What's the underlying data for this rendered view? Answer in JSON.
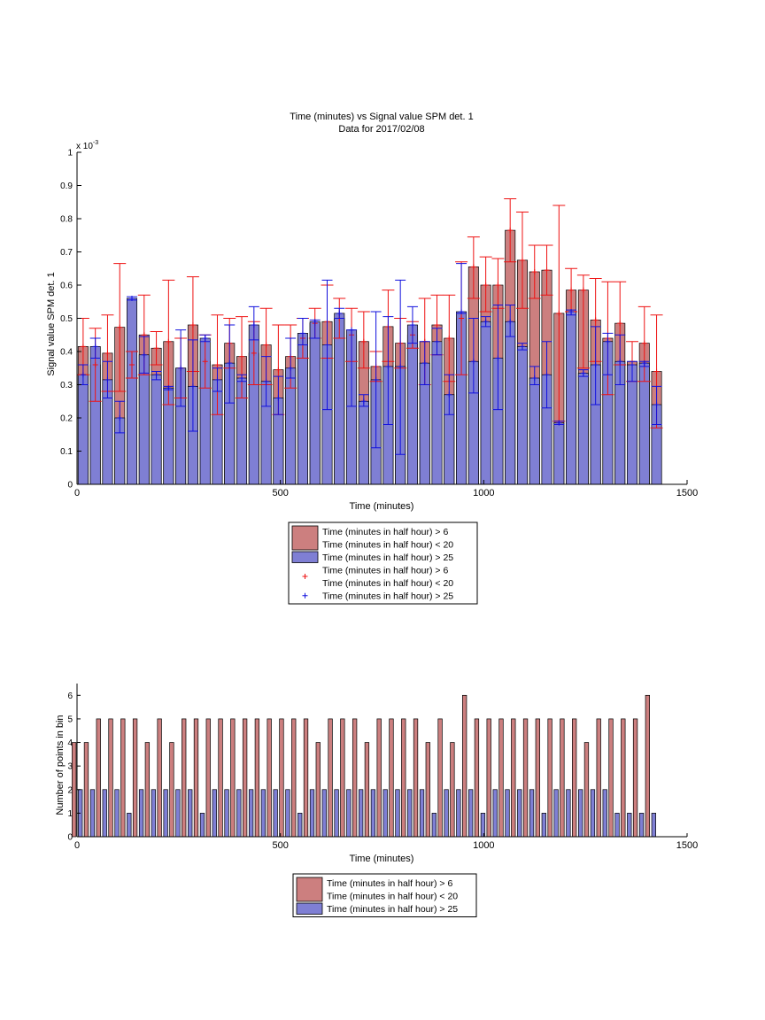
{
  "figure": {
    "title_line1": "Time (minutes) vs Signal value SPM det. 1",
    "title_line2": "Data for 2017/02/08"
  },
  "colors": {
    "red_fill": "#cc7f7f",
    "blue_fill": "#7f7fd4",
    "red_err": "#ee1111",
    "blue_err": "#1111dd",
    "axis": "#000000"
  },
  "legend": {
    "top": {
      "entries": [
        {
          "lines": [
            "Time (minutes in half hour) > 6",
            "Time (minutes in half hour) < 20"
          ],
          "marker": "red-patch"
        },
        {
          "lines": [
            "Time (minutes in half hour) > 25"
          ],
          "marker": "blue-patch"
        },
        {
          "lines": [
            "Time (minutes in half hour) > 6",
            "Time (minutes in half hour) < 20"
          ],
          "marker": "red-plus"
        },
        {
          "lines": [
            "Time (minutes in half hour) > 25"
          ],
          "marker": "blue-plus"
        }
      ]
    },
    "bottom": {
      "entries": [
        {
          "lines": [
            "Time (minutes in half hour) > 6",
            "Time (minutes in half hour) < 20"
          ],
          "marker": "red-patch"
        },
        {
          "lines": [
            "Time (minutes in half hour) > 25"
          ],
          "marker": "blue-patch"
        }
      ]
    }
  },
  "chart_data": [
    {
      "type": "bar",
      "title": "Time (minutes) vs Signal value SPM det. 1",
      "subtitle": "Data for 2017/02/08",
      "xlabel": "Time (minutes)",
      "ylabel": "Signal value SPM det. 1",
      "y_multiplier_label": "x 10",
      "y_multiplier_exponent": "-3",
      "xlim": [
        0,
        1500
      ],
      "ylim": [
        0,
        1
      ],
      "xticks": [
        0,
        500,
        1000,
        1500
      ],
      "yticks": [
        0,
        0.1,
        0.2,
        0.3,
        0.4,
        0.5,
        0.6,
        0.7,
        0.8,
        0.9,
        1
      ],
      "ytick_labels": [
        "0",
        "0.1",
        "0.2",
        "0.3",
        "0.4",
        "0.5",
        "0.6",
        "0.7",
        "0.8",
        "0.9",
        "1"
      ],
      "x": [
        15,
        45,
        75,
        105,
        135,
        165,
        195,
        225,
        255,
        285,
        315,
        345,
        375,
        405,
        435,
        465,
        495,
        525,
        555,
        585,
        615,
        645,
        675,
        705,
        735,
        765,
        795,
        825,
        855,
        885,
        915,
        945,
        975,
        1005,
        1035,
        1065,
        1095,
        1125,
        1155,
        1185,
        1215,
        1245,
        1275,
        1305,
        1335,
        1365,
        1395,
        1425
      ],
      "series": [
        {
          "name": "Time (minutes in half hour) > 6\nTime (minutes in half hour) < 20",
          "values": [
            0.415,
            0.36,
            0.395,
            0.473,
            0.36,
            0.45,
            0.41,
            0.43,
            0.35,
            0.48,
            0.37,
            0.36,
            0.425,
            0.385,
            0.395,
            0.42,
            0.345,
            0.385,
            0.44,
            0.485,
            0.49,
            0.5,
            0.45,
            0.43,
            0.355,
            0.475,
            0.425,
            0.45,
            0.43,
            0.48,
            0.44,
            0.5,
            0.655,
            0.6,
            0.6,
            0.765,
            0.675,
            0.64,
            0.645,
            0.515,
            0.585,
            0.585,
            0.495,
            0.44,
            0.485,
            0.37,
            0.425,
            0.34
          ],
          "err_low": [
            0.33,
            0.25,
            0.28,
            0.28,
            0.32,
            0.33,
            0.36,
            0.24,
            0.26,
            0.34,
            0.29,
            0.21,
            0.35,
            0.26,
            0.3,
            0.3,
            0.21,
            0.29,
            0.38,
            0.44,
            0.38,
            0.44,
            0.37,
            0.35,
            0.31,
            0.37,
            0.35,
            0.41,
            0.3,
            0.39,
            0.31,
            0.33,
            0.56,
            0.52,
            0.53,
            0.67,
            0.53,
            0.56,
            0.57,
            0.19,
            0.52,
            0.35,
            0.37,
            0.27,
            0.36,
            0.31,
            0.31,
            0.17
          ],
          "err_high": [
            0.5,
            0.47,
            0.51,
            0.665,
            0.4,
            0.57,
            0.46,
            0.615,
            0.44,
            0.625,
            0.45,
            0.51,
            0.5,
            0.505,
            0.49,
            0.53,
            0.48,
            0.48,
            0.5,
            0.53,
            0.6,
            0.56,
            0.53,
            0.52,
            0.4,
            0.585,
            0.5,
            0.49,
            0.56,
            0.57,
            0.57,
            0.67,
            0.745,
            0.685,
            0.68,
            0.86,
            0.82,
            0.72,
            0.72,
            0.84,
            0.65,
            0.63,
            0.62,
            0.61,
            0.61,
            0.43,
            0.535,
            0.51
          ]
        },
        {
          "name": "Time (minutes in half hour) > 25",
          "values": [
            0.33,
            0.415,
            0.315,
            0.2,
            0.56,
            0.39,
            0.33,
            0.29,
            0.35,
            0.295,
            0.44,
            0.315,
            0.365,
            0.32,
            0.48,
            0.31,
            0.26,
            0.35,
            0.455,
            0.49,
            0.42,
            0.515,
            0.465,
            0.25,
            0.315,
            0.355,
            0.355,
            0.48,
            0.365,
            0.43,
            0.27,
            0.52,
            0.37,
            0.49,
            0.38,
            0.49,
            0.415,
            0.32,
            0.33,
            0.185,
            0.52,
            0.335,
            0.36,
            0.43,
            0.37,
            0.36,
            0.365,
            0.24
          ],
          "err_low": [
            0.3,
            0.38,
            0.26,
            0.155,
            0.555,
            0.335,
            0.315,
            0.285,
            0.235,
            0.16,
            0.43,
            0.28,
            0.245,
            0.31,
            0.435,
            0.235,
            0.21,
            0.32,
            0.42,
            0.44,
            0.225,
            0.5,
            0.235,
            0.235,
            0.11,
            0.18,
            0.09,
            0.425,
            0.3,
            0.39,
            0.21,
            0.515,
            0.275,
            0.475,
            0.225,
            0.445,
            0.405,
            0.3,
            0.23,
            0.18,
            0.51,
            0.325,
            0.24,
            0.33,
            0.3,
            0.31,
            0.355,
            0.18
          ],
          "err_high": [
            0.36,
            0.44,
            0.37,
            0.25,
            0.565,
            0.445,
            0.34,
            0.295,
            0.465,
            0.435,
            0.45,
            0.35,
            0.48,
            0.33,
            0.535,
            0.385,
            0.325,
            0.44,
            0.5,
            0.495,
            0.615,
            0.53,
            0.465,
            0.27,
            0.52,
            0.505,
            0.615,
            0.535,
            0.43,
            0.47,
            0.33,
            0.665,
            0.5,
            0.505,
            0.54,
            0.54,
            0.425,
            0.355,
            0.43,
            0.19,
            0.525,
            0.345,
            0.475,
            0.455,
            0.45,
            0.37,
            0.37,
            0.295
          ]
        }
      ],
      "legend_position": "below"
    },
    {
      "type": "bar",
      "xlabel": "Time (minutes)",
      "ylabel": "Number of points in bin",
      "xlim": [
        0,
        1500
      ],
      "ylim": [
        0,
        6.5
      ],
      "xticks": [
        0,
        500,
        1000,
        1500
      ],
      "yticks": [
        0,
        1,
        2,
        3,
        4,
        5,
        6
      ],
      "x": [
        15,
        45,
        75,
        105,
        135,
        165,
        195,
        225,
        255,
        285,
        315,
        345,
        375,
        405,
        435,
        465,
        495,
        525,
        555,
        585,
        615,
        645,
        675,
        705,
        735,
        765,
        795,
        825,
        855,
        885,
        915,
        945,
        975,
        1005,
        1035,
        1065,
        1095,
        1125,
        1155,
        1185,
        1215,
        1245,
        1275,
        1305,
        1335,
        1365,
        1395,
        1425
      ],
      "series": [
        {
          "name": "Time (minutes in half hour) > 6\nTime (minutes in half hour) < 20",
          "values": [
            4,
            4,
            5,
            5,
            5,
            5,
            4,
            5,
            4,
            5,
            5,
            5,
            5,
            5,
            5,
            5,
            5,
            5,
            5,
            5,
            4,
            5,
            5,
            5,
            4,
            5,
            5,
            5,
            5,
            4,
            5,
            4,
            6,
            5,
            5,
            5,
            5,
            5,
            5,
            5,
            5,
            5,
            4,
            5,
            5,
            5,
            5,
            6
          ]
        },
        {
          "name": "Time (minutes in half hour) > 25",
          "values": [
            2,
            2,
            2,
            2,
            1,
            2,
            2,
            2,
            2,
            2,
            1,
            2,
            2,
            2,
            2,
            2,
            2,
            2,
            1,
            2,
            2,
            2,
            2,
            2,
            2,
            2,
            2,
            2,
            2,
            1,
            2,
            2,
            2,
            1,
            2,
            2,
            2,
            2,
            1,
            2,
            2,
            2,
            2,
            2,
            1,
            1,
            1,
            1
          ]
        }
      ],
      "legend_position": "below"
    }
  ]
}
